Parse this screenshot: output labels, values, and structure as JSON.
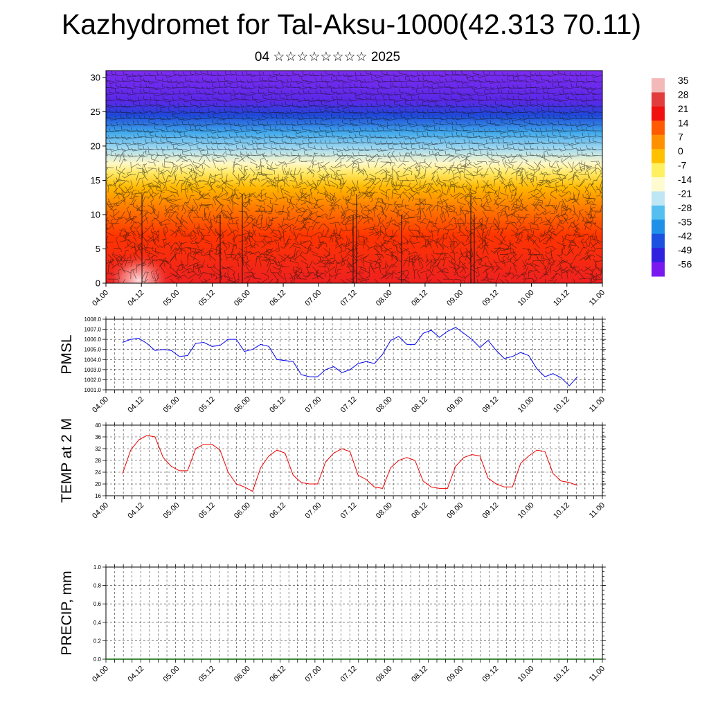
{
  "title": "Kazhydromet for Tal-Aksu-1000(42.313 70.11)",
  "subtitle": "04 ☆☆☆☆☆☆☆☆ 2025",
  "time_labels": [
    "04.00",
    "04.12",
    "05.00",
    "05.12",
    "06.00",
    "06.12",
    "07.00",
    "07.12",
    "08.00",
    "08.12",
    "09.00",
    "09.12",
    "10.00",
    "10.12",
    "11.00"
  ],
  "chart_data": [
    {
      "type": "heatmap",
      "panel": "cross-section",
      "y_ticks": [
        0,
        5,
        10,
        15,
        20,
        25,
        30
      ],
      "ylim": [
        0,
        31
      ],
      "colorbar_labels": [
        "35",
        "28",
        "21",
        "14",
        "7",
        "0",
        "-7",
        "-14",
        "-21",
        "-28",
        "-35",
        "-42",
        "-49",
        "-56"
      ],
      "colorbar_colors": [
        "#f3b8b8",
        "#e23c3c",
        "#f01010",
        "#ff5a00",
        "#ff9000",
        "#ffc000",
        "#fff060",
        "#fffbd0",
        "#bfe6f5",
        "#55c0f0",
        "#1e90e8",
        "#1c50e0",
        "#3020e0",
        "#7a18f0"
      ],
      "layers": [
        {
          "z": 0,
          "color": "#ee2020"
        },
        {
          "z": 7,
          "color": "#ff3500"
        },
        {
          "z": 11,
          "color": "#ff7a00"
        },
        {
          "z": 14,
          "color": "#ffb800"
        },
        {
          "z": 16,
          "color": "#ffe860"
        },
        {
          "z": 17.5,
          "color": "#fff8c8"
        },
        {
          "z": 19.5,
          "color": "#a8dcf0"
        },
        {
          "z": 22,
          "color": "#40a8ec"
        },
        {
          "z": 24.5,
          "color": "#1e48d8"
        },
        {
          "z": 26.5,
          "color": "#5a28e8"
        },
        {
          "z": 31,
          "color": "#7c2cf0"
        }
      ]
    },
    {
      "type": "line",
      "panel": "pmsl",
      "ylabel": "PMSL",
      "y_ticks": [
        "1001.0",
        "1002.0",
        "1003.0",
        "1004.0",
        "1005.0",
        "1006.0",
        "1007.0",
        "1008.0"
      ],
      "ylim": [
        1001,
        1008
      ],
      "color": "#0000ee",
      "values": [
        1005.7,
        1006.0,
        1006.1,
        1005.6,
        1004.9,
        1005.0,
        1004.9,
        1004.3,
        1004.4,
        1005.6,
        1005.7,
        1005.3,
        1005.4,
        1006.0,
        1006.0,
        1004.8,
        1005.0,
        1005.5,
        1005.3,
        1004.0,
        1003.9,
        1003.8,
        1002.5,
        1002.3,
        1002.3,
        1003.0,
        1003.3,
        1002.7,
        1003.0,
        1003.6,
        1003.8,
        1003.6,
        1004.5,
        1005.9,
        1006.3,
        1005.5,
        1005.5,
        1006.6,
        1006.9,
        1006.2,
        1006.8,
        1007.2,
        1006.6,
        1006.0,
        1005.2,
        1005.9,
        1004.9,
        1004.1,
        1004.3,
        1004.7,
        1004.4,
        1003.1,
        1002.3,
        1002.6,
        1002.2,
        1001.4,
        1002.3
      ]
    },
    {
      "type": "line",
      "panel": "temp",
      "ylabel": "TEMP at 2 M",
      "y_ticks": [
        "16",
        "20",
        "24",
        "28",
        "32",
        "36",
        "40"
      ],
      "ylim": [
        16,
        40
      ],
      "color": "#ee0000",
      "values": [
        23.5,
        31.5,
        35.0,
        36.5,
        36.0,
        29.0,
        26.0,
        24.5,
        24.5,
        32.0,
        33.5,
        33.5,
        31.5,
        24.0,
        20.0,
        19.0,
        17.5,
        25.5,
        29.5,
        31.5,
        30.5,
        23.0,
        20.5,
        20.0,
        20.0,
        27.5,
        30.5,
        32.0,
        31.0,
        23.0,
        21.5,
        19.0,
        18.5,
        25.5,
        28.0,
        29.0,
        28.0,
        21.0,
        19.0,
        18.5,
        18.5,
        26.0,
        29.0,
        30.0,
        29.5,
        22.0,
        20.0,
        19.0,
        19.0,
        27.0,
        29.5,
        31.5,
        31.0,
        23.5,
        21.0,
        20.5,
        19.5
      ]
    },
    {
      "type": "bar",
      "panel": "precip",
      "ylabel": "PRECIP, mm",
      "y_ticks": [
        "0.0",
        "0.2",
        "0.4",
        "0.6",
        "0.8",
        "1.0"
      ],
      "ylim": [
        0,
        1
      ],
      "color": "#006400",
      "values": []
    }
  ]
}
